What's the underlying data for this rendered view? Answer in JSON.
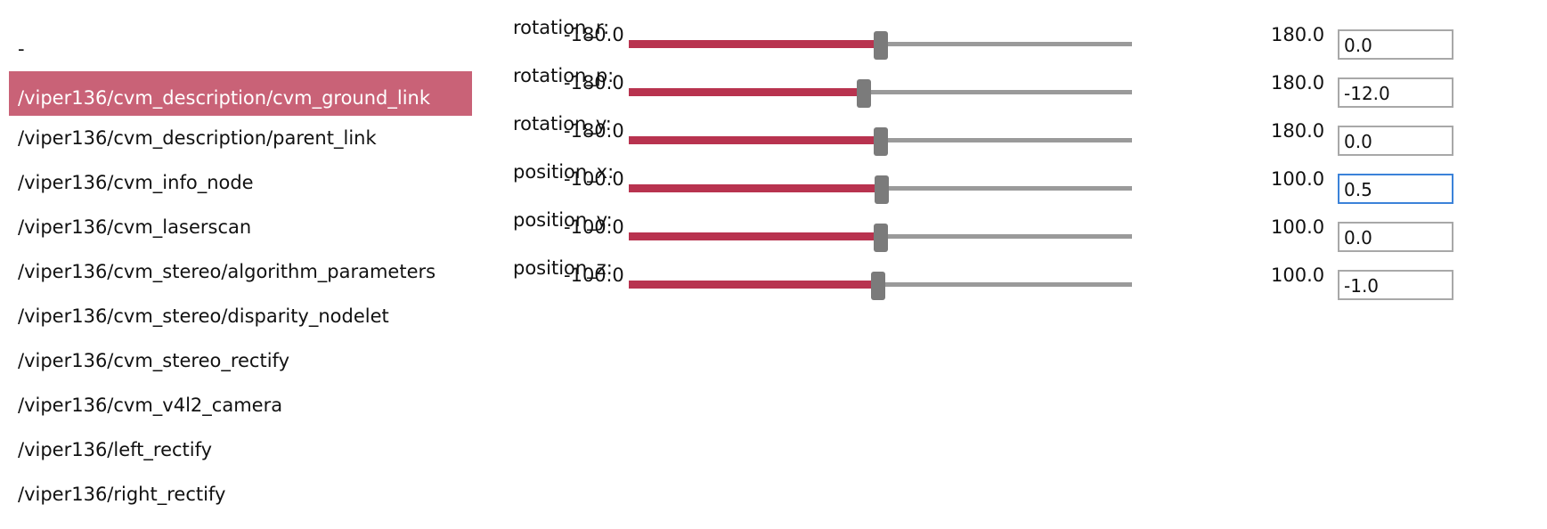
{
  "nodes": {
    "selected_index": 1,
    "items": [
      "-",
      "/viper136/cvm_description/cvm_ground_link",
      "/viper136/cvm_description/parent_link",
      "/viper136/cvm_info_node",
      "/viper136/cvm_laserscan",
      "/viper136/cvm_stereo/algorithm_parameters",
      "/viper136/cvm_stereo/disparity_nodelet",
      "/viper136/cvm_stereo_rectify",
      "/viper136/cvm_v4l2_camera",
      "/viper136/left_rectify",
      "/viper136/right_rectify"
    ]
  },
  "params": [
    {
      "name": "rotation_r",
      "label": "rotation_r:",
      "min": -180,
      "max": 180,
      "value": 0,
      "min_label": "-180.0",
      "max_label": "180.0",
      "input_value": "0.0",
      "focused": false
    },
    {
      "name": "rotation_p",
      "label": "rotation_p:",
      "min": -180,
      "max": 180,
      "value": -12,
      "min_label": "-180.0",
      "max_label": "180.0",
      "input_value": "-12.0",
      "focused": false
    },
    {
      "name": "rotation_y",
      "label": "rotation_y:",
      "min": -180,
      "max": 180,
      "value": 0,
      "min_label": "-180.0",
      "max_label": "180.0",
      "input_value": "0.0",
      "focused": false
    },
    {
      "name": "position_x",
      "label": "position_x:",
      "min": -100,
      "max": 100,
      "value": 0.5,
      "min_label": "-100.0",
      "max_label": "100.0",
      "input_value": "0.5",
      "focused": true
    },
    {
      "name": "position_y",
      "label": "position_y:",
      "min": -100,
      "max": 100,
      "value": 0,
      "min_label": "-100.0",
      "max_label": "100.0",
      "input_value": "0.0",
      "focused": false
    },
    {
      "name": "position_z",
      "label": "position_z:",
      "min": -100,
      "max": 100,
      "value": -1,
      "min_label": "-100.0",
      "max_label": "100.0",
      "input_value": "-1.0",
      "focused": false
    }
  ],
  "colors": {
    "selection_background": "#c96277",
    "slider_fill": "#b8334f",
    "slider_track": "#9a9a9a",
    "slider_thumb": "#7b7b7b",
    "focus_border": "#3b82d9"
  }
}
